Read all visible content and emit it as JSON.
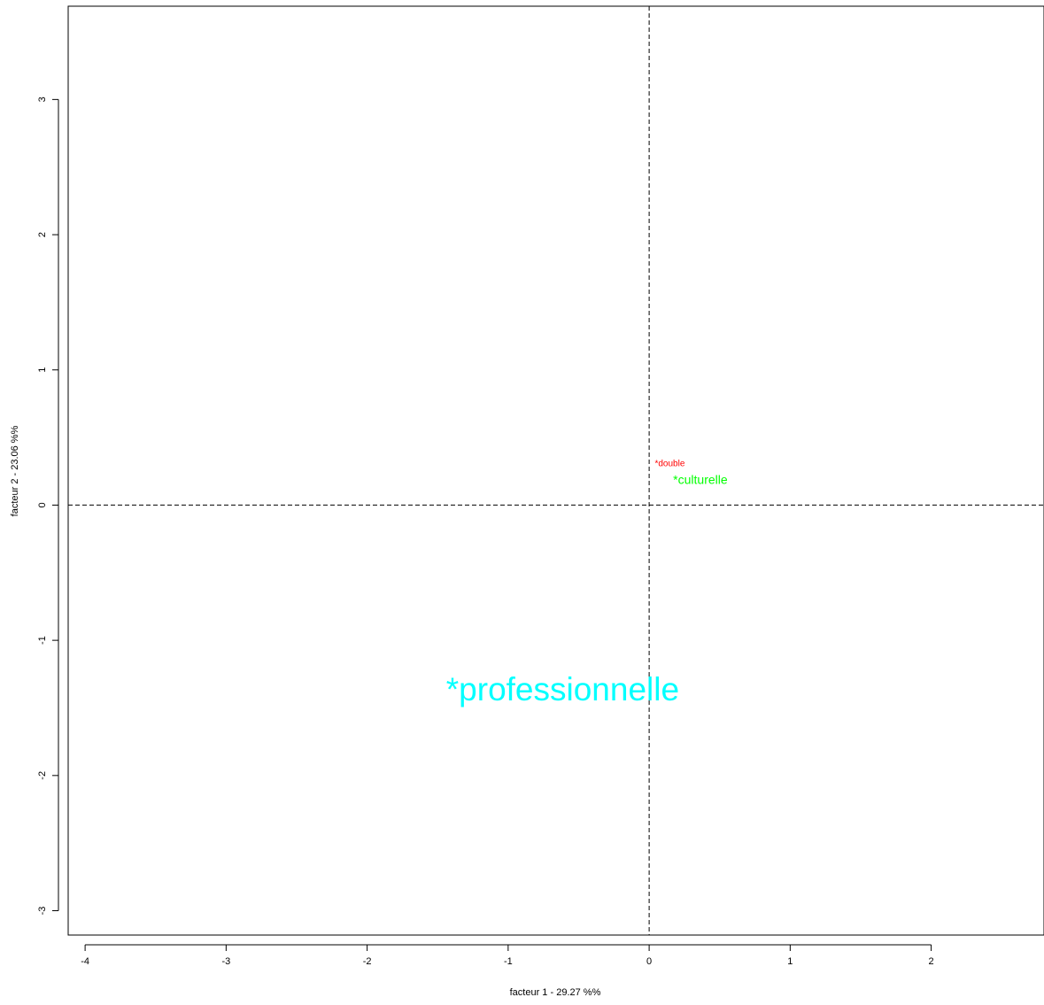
{
  "chart_data": {
    "type": "scatter",
    "title": "",
    "xlabel": "facteur  1  - 29.27 %%",
    "ylabel": "facteur  2  - 23.06 %%",
    "xlim": [
      -4.12,
      2.8
    ],
    "ylim": [
      -3.18,
      3.69
    ],
    "x_ticks": [
      -4,
      -3,
      -2,
      -1,
      0,
      1,
      2
    ],
    "y_ticks": [
      -3,
      -2,
      -1,
      0,
      1,
      2,
      3
    ],
    "reference_lines": {
      "x": 0,
      "y": 0,
      "style": "dashed"
    },
    "points": [
      {
        "label": "*double",
        "x": 0.04,
        "y": 0.31,
        "color": "#ff0000",
        "size": "small"
      },
      {
        "label": "*culturelle",
        "x": 0.17,
        "y": 0.19,
        "color": "#00ff00",
        "size": "medium"
      },
      {
        "label": "*professionnelle",
        "x": -1.44,
        "y": -1.36,
        "color": "#00ffff",
        "size": "large"
      }
    ]
  }
}
